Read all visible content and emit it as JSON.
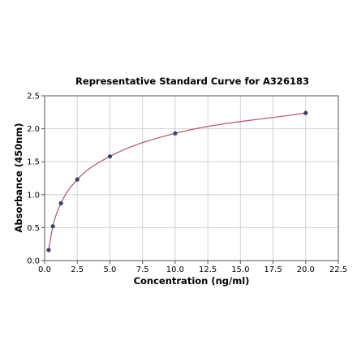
{
  "chart_data": {
    "type": "scatter",
    "title": "Representative Standard Curve for A326183",
    "xlabel": "Concentration (ng/ml)",
    "ylabel": "Absorbance (450nm)",
    "xlim": [
      0,
      22.5
    ],
    "ylim": [
      0,
      2.5
    ],
    "x_ticks": [
      "0.0",
      "2.5",
      "5.0",
      "7.5",
      "10.0",
      "12.5",
      "15.0",
      "17.5",
      "20.0",
      "22.5"
    ],
    "y_ticks": [
      "0.0",
      "0.5",
      "1.0",
      "1.5",
      "2.0",
      "2.5"
    ],
    "grid": true,
    "series": [
      {
        "x": [
          0.31,
          0.63,
          1.25,
          2.5,
          5.0,
          10.0,
          20.0
        ],
        "y": [
          0.16,
          0.52,
          0.87,
          1.23,
          1.58,
          1.93,
          2.24
        ],
        "marker_color": "#3d3f70",
        "fit_line_color": "#b5506b"
      }
    ]
  }
}
